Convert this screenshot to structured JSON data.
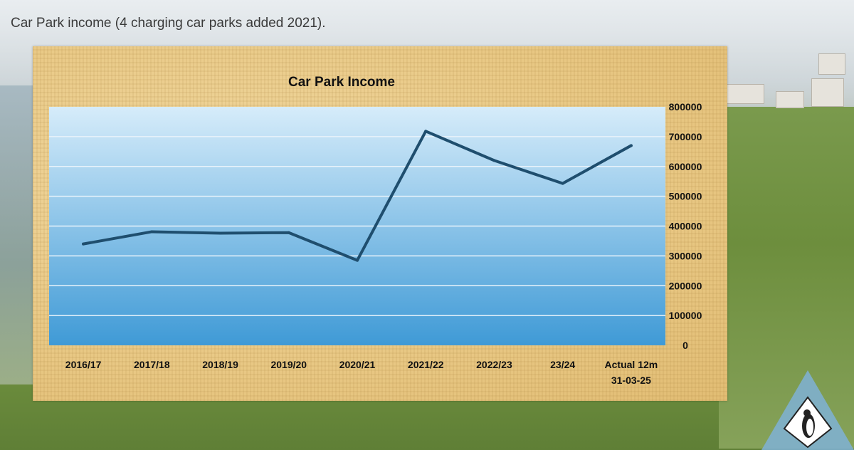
{
  "slide": {
    "title": "Car Park income (4 charging car parks added 2021)."
  },
  "colors": {
    "line": "#1f4e6e",
    "plot_top": "#d6ecfa",
    "plot_bottom": "#3f9ad6",
    "gridline": "#e8f3fb",
    "panel": "#e9c986",
    "text": "#111111"
  },
  "logo": {
    "icon": "penguin-triangle-logo-icon"
  },
  "chart_data": {
    "type": "line",
    "title": "Car Park Income",
    "xlabel": "",
    "ylabel": "",
    "y_axis_position": "right",
    "categories": [
      "2016/17",
      "2017/18",
      "2018/19",
      "2019/20",
      "2020/21",
      "2021/22",
      "2022/23",
      "23/24",
      "Actual 12m 31-03-25"
    ],
    "category_lines": [
      [
        "2016/17"
      ],
      [
        "2017/18"
      ],
      [
        "2018/19"
      ],
      [
        "2019/20"
      ],
      [
        "2020/21"
      ],
      [
        "2021/22"
      ],
      [
        "2022/23"
      ],
      [
        "23/24"
      ],
      [
        "Actual 12m",
        "31-03-25"
      ]
    ],
    "series": [
      {
        "values": [
          340000,
          381000,
          376000,
          378000,
          285000,
          718000,
          620000,
          543000,
          670000
        ]
      }
    ],
    "ylim": [
      0,
      800000
    ],
    "yticks": [
      0,
      100000,
      200000,
      300000,
      400000,
      500000,
      600000,
      700000,
      800000
    ],
    "grid": true,
    "legend": "none"
  }
}
